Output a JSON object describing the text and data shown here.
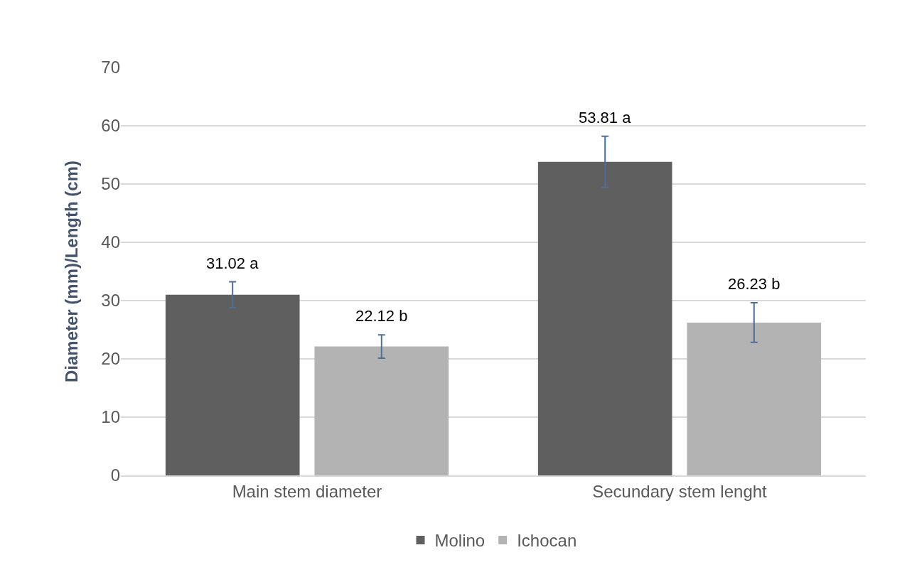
{
  "chart_data": {
    "type": "bar",
    "ylabel": "Diameter (mm)/Length (cm)",
    "categories": [
      "Main stem diameter",
      "Secundary stem lenght"
    ],
    "series": [
      {
        "name": "Molino",
        "color": "#5f5f5f",
        "values": [
          31.02,
          53.81
        ],
        "errors": [
          2.2,
          4.4
        ],
        "value_labels": [
          "31.02 a",
          "53.81 a"
        ]
      },
      {
        "name": "Ichocan",
        "color": "#b3b3b3",
        "values": [
          22.12,
          26.23
        ],
        "errors": [
          2.0,
          3.4
        ],
        "value_labels": [
          "22.12 b",
          "26.23 b"
        ]
      }
    ],
    "ylim": [
      0,
      70
    ],
    "yticks": [
      0,
      10,
      20,
      30,
      40,
      50,
      60,
      70
    ],
    "grid": "y",
    "legend": "bottom"
  }
}
